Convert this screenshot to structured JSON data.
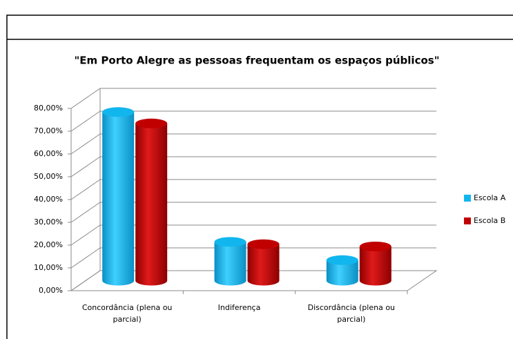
{
  "chart_data": {
    "type": "bar3d",
    "title": "\"Em Porto Alegre as pessoas frequentam os espaços públicos\"",
    "categories": [
      "Concordância (plena ou parcial)",
      "Indiferença",
      "Discordância (plena ou parcial)"
    ],
    "series": [
      {
        "name": "Escola A",
        "color": "#12b6ee",
        "values": [
          74,
          17,
          9
        ]
      },
      {
        "name": "Escola B",
        "color": "#c00000",
        "values": [
          69,
          16,
          15
        ]
      }
    ],
    "ylim": [
      0,
      80
    ],
    "yticks": [
      {
        "value": 0,
        "label": "0,00%"
      },
      {
        "value": 10,
        "label": "10,00%"
      },
      {
        "value": 20,
        "label": "20,00%"
      },
      {
        "value": 30,
        "label": "30,00%"
      },
      {
        "value": 40,
        "label": "40,00%"
      },
      {
        "value": 50,
        "label": "50,00%"
      },
      {
        "value": 60,
        "label": "60,00%"
      },
      {
        "value": 70,
        "label": "70,00%"
      },
      {
        "value": 80,
        "label": "80,00%"
      }
    ],
    "grid": true,
    "legend": "right"
  }
}
